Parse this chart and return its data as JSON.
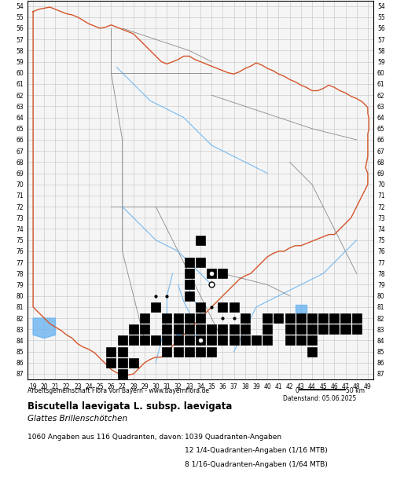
{
  "title_bold": "Biscutella laevigata L. subsp. laevigata",
  "title_italic": "Glattes Brillenschötchen",
  "footer_left": "Arbeitsgemeinschaft Flora von Bayern - www.bayernflora.de",
  "footer_scale": "0          50 km",
  "date_label": "Datenstand: 05.06.2025",
  "stats_line": "1060 Angaben aus 116 Quadranten, davon:",
  "stats_detail1": "1039 Quadranten-Angaben",
  "stats_detail2": "12 1/4-Quadranten-Angaben (1/16 MTB)",
  "stats_detail3": "8 1/16-Quadranten-Angaben (1/64 MTB)",
  "x_ticks": [
    19,
    20,
    21,
    22,
    23,
    24,
    25,
    26,
    27,
    28,
    29,
    30,
    31,
    32,
    33,
    34,
    35,
    36,
    37,
    38,
    39,
    40,
    41,
    42,
    43,
    44,
    45,
    46,
    47,
    48,
    49
  ],
  "y_ticks": [
    54,
    55,
    56,
    57,
    58,
    59,
    60,
    61,
    62,
    63,
    64,
    65,
    66,
    67,
    68,
    69,
    70,
    71,
    72,
    73,
    74,
    75,
    76,
    77,
    78,
    79,
    80,
    81,
    82,
    83,
    84,
    85,
    86,
    87
  ],
  "x_min": 18.5,
  "x_max": 49.5,
  "y_min": 53.5,
  "y_max": 87.5,
  "background_color": "#ffffff",
  "grid_color": "#cccccc",
  "map_area_color": "#f8f8f8",
  "bavaria_border": [
    [
      19.0,
      54.2
    ],
    [
      19.5,
      54.0
    ],
    [
      20.5,
      54.1
    ],
    [
      21.0,
      54.3
    ],
    [
      21.5,
      54.5
    ],
    [
      22.0,
      54.7
    ],
    [
      22.5,
      54.8
    ],
    [
      23.0,
      55.0
    ],
    [
      23.5,
      55.2
    ],
    [
      24.0,
      55.5
    ],
    [
      24.5,
      55.7
    ],
    [
      25.0,
      56.0
    ],
    [
      25.5,
      56.0
    ],
    [
      26.0,
      55.8
    ],
    [
      26.5,
      56.0
    ],
    [
      27.0,
      56.2
    ],
    [
      27.5,
      56.3
    ],
    [
      28.0,
      56.5
    ],
    [
      28.5,
      57.0
    ],
    [
      29.0,
      57.5
    ],
    [
      29.5,
      58.0
    ],
    [
      30.0,
      58.5
    ],
    [
      30.5,
      59.0
    ],
    [
      31.0,
      59.2
    ],
    [
      31.5,
      59.0
    ],
    [
      32.0,
      58.8
    ],
    [
      32.5,
      58.5
    ],
    [
      33.0,
      58.5
    ],
    [
      33.5,
      58.8
    ],
    [
      34.0,
      59.0
    ],
    [
      34.5,
      59.2
    ],
    [
      35.0,
      59.3
    ],
    [
      35.5,
      59.5
    ],
    [
      36.0,
      59.7
    ],
    [
      36.5,
      59.8
    ],
    [
      37.0,
      60.0
    ],
    [
      37.5,
      59.8
    ],
    [
      38.0,
      59.5
    ],
    [
      38.5,
      59.3
    ],
    [
      39.0,
      59.0
    ],
    [
      39.5,
      59.2
    ],
    [
      40.0,
      59.5
    ],
    [
      40.5,
      59.7
    ],
    [
      41.0,
      60.0
    ],
    [
      41.5,
      60.2
    ],
    [
      42.0,
      60.5
    ],
    [
      42.5,
      60.7
    ],
    [
      43.0,
      61.0
    ],
    [
      43.5,
      61.2
    ],
    [
      44.0,
      61.5
    ],
    [
      44.5,
      61.5
    ],
    [
      45.0,
      61.3
    ],
    [
      45.5,
      61.0
    ],
    [
      46.0,
      61.2
    ],
    [
      46.5,
      61.5
    ],
    [
      47.0,
      61.7
    ],
    [
      47.5,
      62.0
    ],
    [
      48.0,
      62.2
    ],
    [
      48.5,
      62.5
    ],
    [
      49.0,
      63.0
    ],
    [
      49.0,
      63.5
    ],
    [
      48.8,
      64.0
    ],
    [
      49.0,
      64.5
    ],
    [
      49.0,
      65.0
    ],
    [
      48.8,
      65.5
    ],
    [
      49.0,
      66.0
    ],
    [
      49.0,
      67.0
    ],
    [
      48.5,
      67.5
    ],
    [
      48.0,
      68.0
    ],
    [
      47.5,
      68.5
    ],
    [
      47.0,
      69.0
    ],
    [
      46.5,
      70.0
    ],
    [
      46.0,
      71.0
    ],
    [
      45.5,
      72.0
    ],
    [
      45.0,
      73.0
    ],
    [
      44.5,
      73.5
    ],
    [
      44.0,
      74.0
    ],
    [
      43.5,
      74.2
    ],
    [
      43.0,
      74.5
    ],
    [
      42.5,
      74.7
    ],
    [
      42.0,
      75.0
    ],
    [
      41.5,
      75.0
    ],
    [
      41.0,
      75.2
    ],
    [
      40.5,
      75.5
    ],
    [
      40.0,
      75.5
    ],
    [
      39.5,
      75.7
    ],
    [
      39.0,
      76.0
    ],
    [
      38.5,
      76.5
    ],
    [
      38.0,
      77.0
    ],
    [
      37.5,
      77.5
    ],
    [
      37.0,
      78.0
    ],
    [
      36.5,
      78.0
    ],
    [
      36.0,
      78.2
    ],
    [
      35.5,
      78.5
    ],
    [
      35.0,
      79.0
    ],
    [
      34.5,
      79.5
    ],
    [
      34.0,
      80.0
    ],
    [
      33.5,
      80.5
    ],
    [
      33.0,
      81.0
    ],
    [
      32.5,
      81.5
    ],
    [
      32.0,
      82.0
    ],
    [
      31.5,
      82.5
    ],
    [
      31.0,
      83.0
    ],
    [
      30.5,
      83.5
    ],
    [
      30.0,
      84.0
    ],
    [
      29.5,
      84.2
    ],
    [
      29.0,
      84.5
    ],
    [
      28.5,
      84.5
    ],
    [
      28.0,
      84.7
    ],
    [
      27.5,
      85.0
    ],
    [
      27.0,
      85.2
    ],
    [
      26.5,
      85.5
    ],
    [
      26.0,
      86.0
    ],
    [
      25.5,
      86.5
    ],
    [
      25.0,
      86.5
    ],
    [
      24.5,
      86.7
    ],
    [
      24.0,
      87.0
    ],
    [
      23.5,
      87.0
    ],
    [
      23.0,
      86.8
    ],
    [
      22.5,
      86.5
    ],
    [
      22.0,
      86.0
    ],
    [
      21.5,
      85.5
    ],
    [
      21.0,
      85.0
    ],
    [
      20.5,
      84.5
    ],
    [
      20.0,
      84.0
    ],
    [
      19.5,
      83.5
    ],
    [
      19.0,
      83.0
    ],
    [
      19.0,
      82.0
    ],
    [
      19.0,
      81.0
    ],
    [
      19.0,
      80.0
    ],
    [
      19.0,
      79.0
    ],
    [
      19.0,
      78.0
    ],
    [
      19.0,
      77.0
    ],
    [
      19.0,
      76.0
    ],
    [
      19.0,
      75.0
    ],
    [
      19.0,
      74.0
    ],
    [
      19.0,
      73.0
    ],
    [
      19.0,
      72.0
    ],
    [
      19.0,
      71.0
    ],
    [
      19.0,
      70.0
    ],
    [
      19.0,
      69.0
    ],
    [
      19.0,
      68.0
    ],
    [
      19.0,
      67.0
    ],
    [
      19.0,
      66.0
    ],
    [
      19.0,
      65.0
    ],
    [
      19.0,
      64.0
    ],
    [
      19.0,
      63.0
    ],
    [
      19.0,
      62.0
    ],
    [
      19.0,
      61.0
    ],
    [
      19.0,
      60.0
    ],
    [
      19.0,
      59.0
    ],
    [
      19.0,
      58.0
    ],
    [
      19.0,
      57.0
    ],
    [
      19.0,
      56.0
    ],
    [
      19.0,
      55.0
    ],
    [
      19.0,
      54.2
    ]
  ],
  "black_squares": [
    [
      34,
      75
    ],
    [
      33,
      77
    ],
    [
      34,
      77
    ],
    [
      33,
      78
    ],
    [
      35,
      78
    ],
    [
      36,
      78
    ],
    [
      33,
      79
    ],
    [
      33,
      80
    ],
    [
      30,
      81
    ],
    [
      34,
      81
    ],
    [
      36,
      81
    ],
    [
      37,
      81
    ],
    [
      29,
      82
    ],
    [
      31,
      82
    ],
    [
      32,
      82
    ],
    [
      33,
      82
    ],
    [
      34,
      82
    ],
    [
      38,
      82
    ],
    [
      40,
      82
    ],
    [
      41,
      82
    ],
    [
      42,
      82
    ],
    [
      43,
      82
    ],
    [
      44,
      82
    ],
    [
      45,
      82
    ],
    [
      46,
      82
    ],
    [
      47,
      82
    ],
    [
      48,
      82
    ],
    [
      28,
      83
    ],
    [
      29,
      83
    ],
    [
      31,
      83
    ],
    [
      32,
      83
    ],
    [
      33,
      83
    ],
    [
      34,
      83
    ],
    [
      35,
      83
    ],
    [
      36,
      83
    ],
    [
      37,
      83
    ],
    [
      38,
      83
    ],
    [
      40,
      83
    ],
    [
      42,
      83
    ],
    [
      43,
      83
    ],
    [
      44,
      83
    ],
    [
      45,
      83
    ],
    [
      46,
      83
    ],
    [
      47,
      83
    ],
    [
      48,
      83
    ],
    [
      27,
      84
    ],
    [
      28,
      84
    ],
    [
      29,
      84
    ],
    [
      30,
      84
    ],
    [
      31,
      84
    ],
    [
      32,
      84
    ],
    [
      33,
      84
    ],
    [
      34,
      84
    ],
    [
      35,
      84
    ],
    [
      36,
      84
    ],
    [
      37,
      84
    ],
    [
      38,
      84
    ],
    [
      39,
      84
    ],
    [
      40,
      84
    ],
    [
      42,
      84
    ],
    [
      43,
      84
    ],
    [
      44,
      84
    ],
    [
      26,
      85
    ],
    [
      27,
      85
    ],
    [
      31,
      85
    ],
    [
      32,
      85
    ],
    [
      33,
      85
    ],
    [
      34,
      85
    ],
    [
      35,
      85
    ],
    [
      44,
      85
    ],
    [
      26,
      86
    ],
    [
      27,
      86
    ],
    [
      28,
      86
    ],
    [
      27,
      87
    ]
  ],
  "open_circles": [
    [
      35,
      78
    ],
    [
      35,
      79
    ],
    [
      34,
      84
    ]
  ],
  "small_dots": [
    [
      30,
      80
    ],
    [
      31,
      80
    ],
    [
      34,
      81
    ],
    [
      35,
      81
    ],
    [
      36,
      81
    ],
    [
      34,
      82
    ],
    [
      36,
      82
    ],
    [
      37,
      82
    ],
    [
      26,
      85
    ],
    [
      27,
      85
    ]
  ],
  "rivers_color": "#6ab4f0",
  "border_color": "#d4552a",
  "district_color": "#888888",
  "fig_width": 5.0,
  "fig_height": 6.2,
  "dpi": 100
}
